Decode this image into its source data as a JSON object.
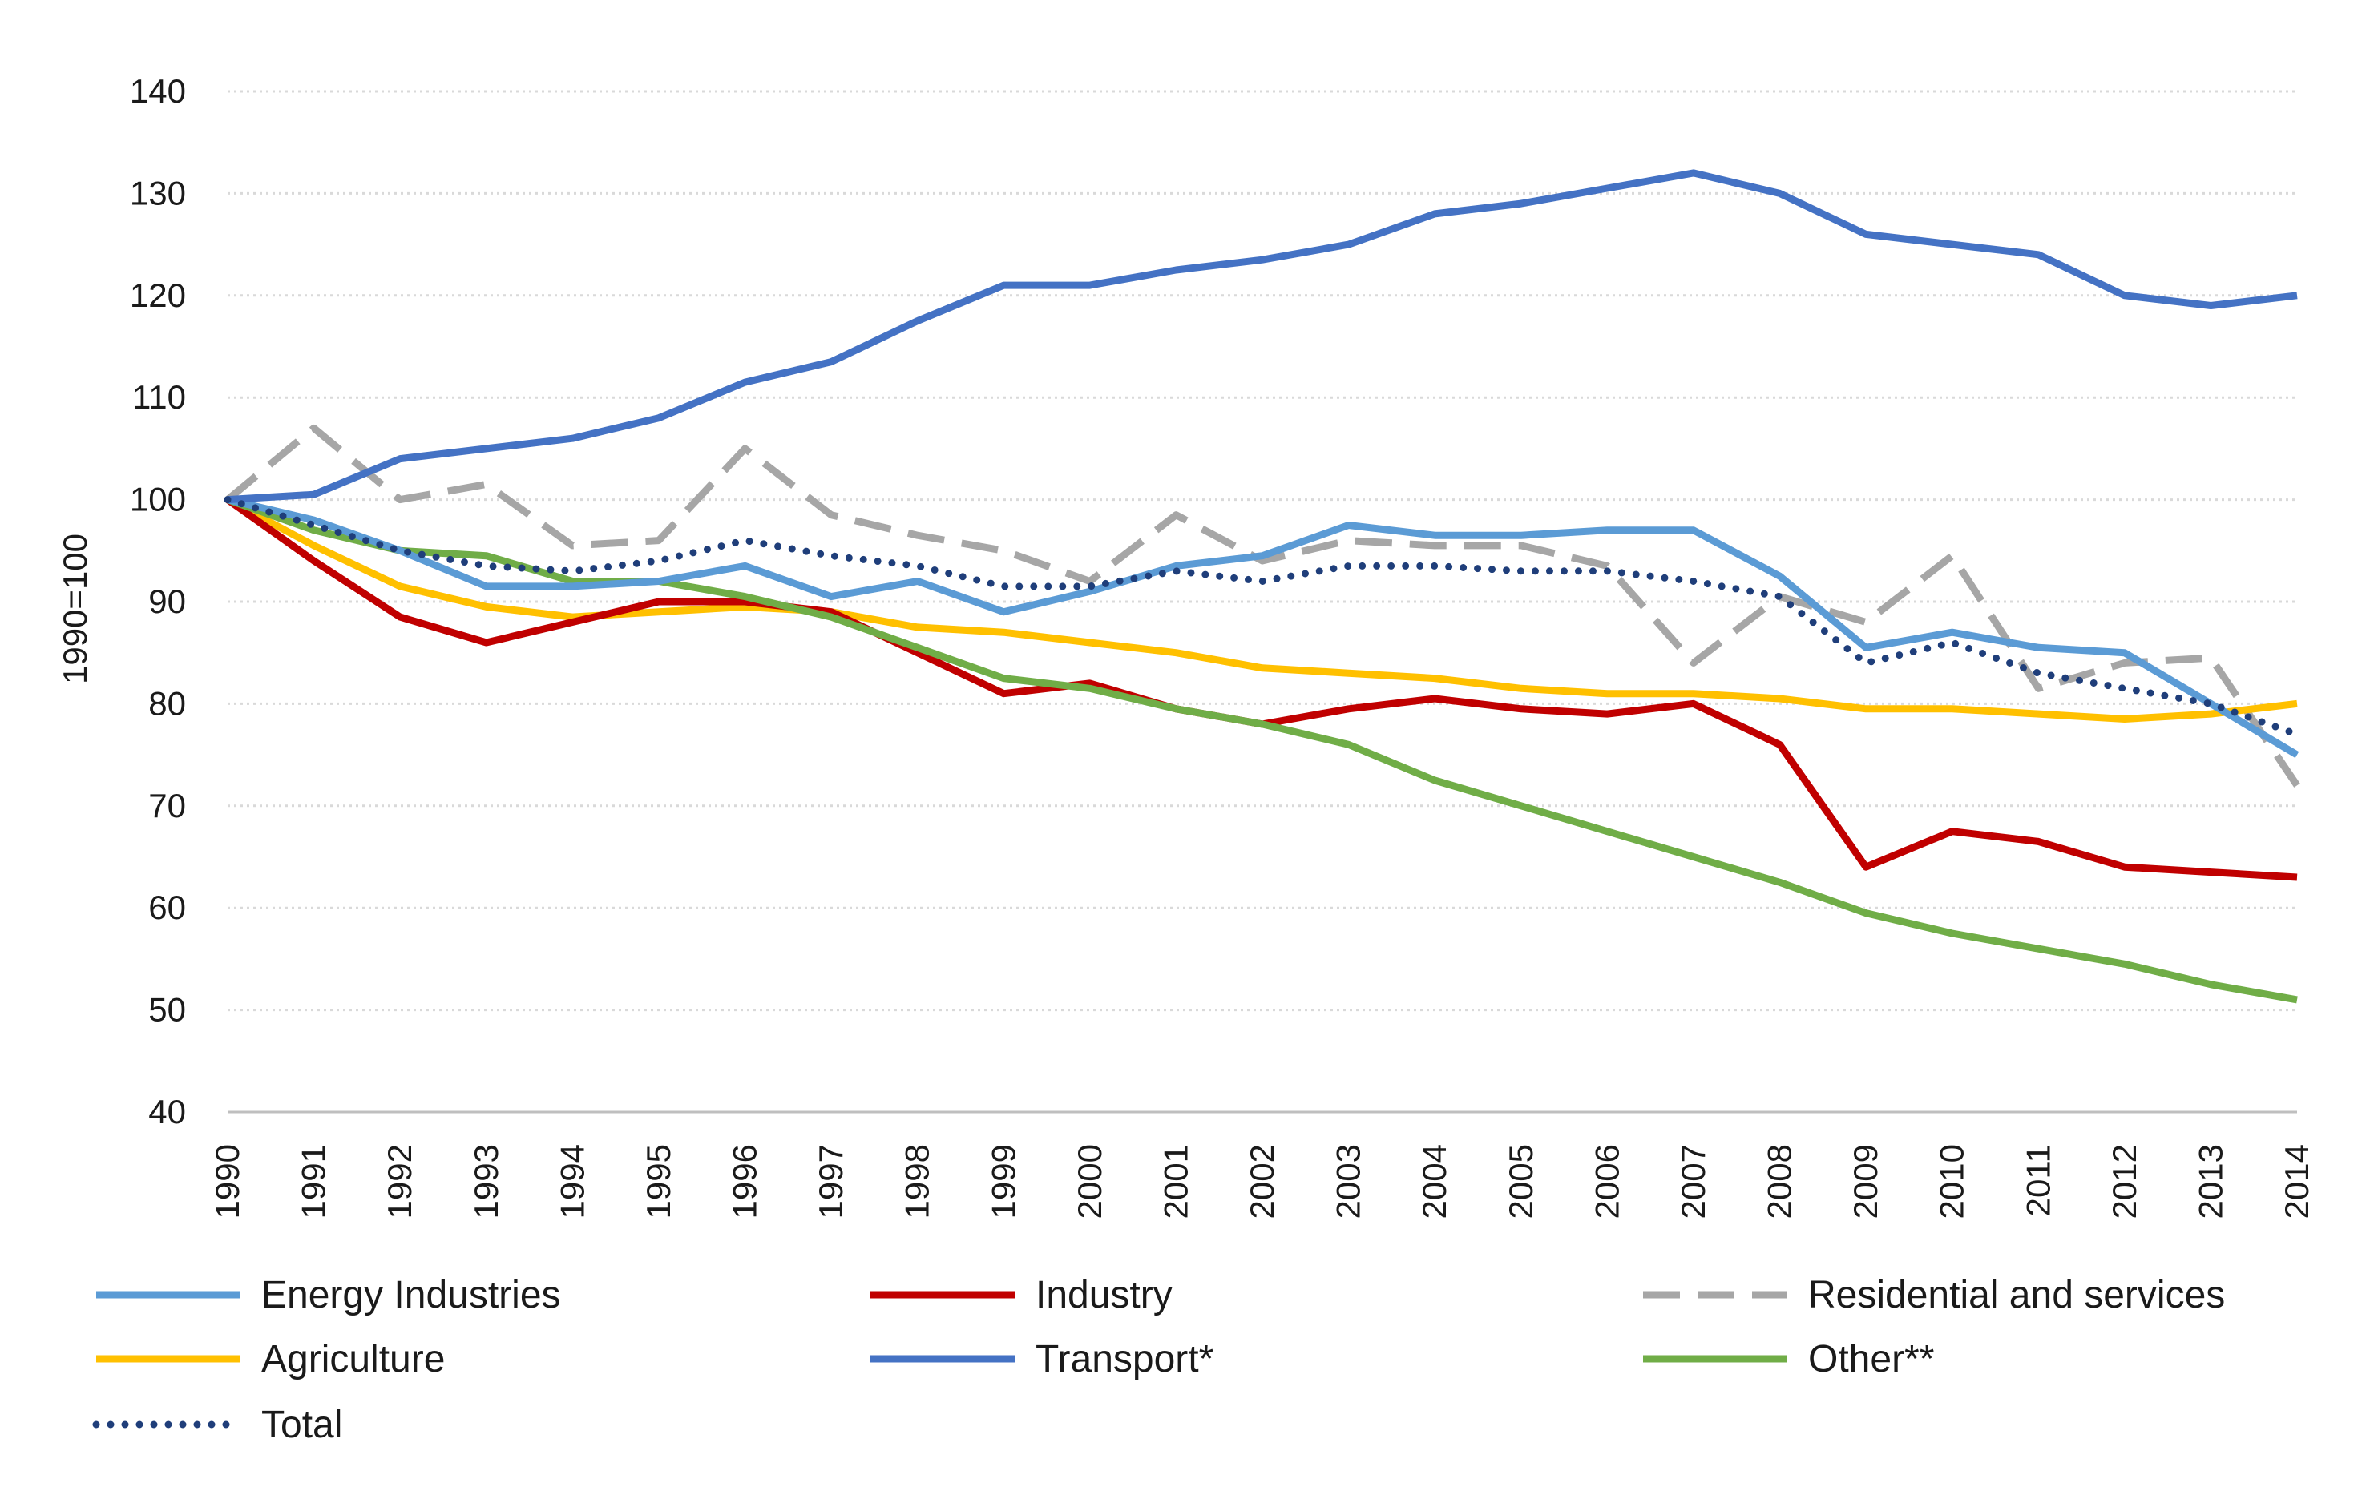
{
  "chart_data": {
    "type": "line",
    "title": "",
    "xlabel": "",
    "ylabel": "1990=100",
    "ylim": [
      40,
      140
    ],
    "yticks": [
      "40",
      "50",
      "60",
      "70",
      "80",
      "90",
      "100",
      "110",
      "120",
      "130",
      "140"
    ],
    "grid": true,
    "legend_position": "bottom",
    "categories": [
      "1990",
      "1991",
      "1992",
      "1993",
      "1994",
      "1995",
      "1996",
      "1997",
      "1998",
      "1999",
      "2000",
      "2001",
      "2002",
      "2003",
      "2004",
      "2005",
      "2006",
      "2007",
      "2008",
      "2009",
      "2010",
      "2011",
      "2012",
      "2013",
      "2014"
    ],
    "series": [
      {
        "name": "Energy Industries",
        "color": "#5b9bd5",
        "style": "solid",
        "values": [
          100,
          98,
          95,
          91.5,
          91.5,
          92,
          93.5,
          90.5,
          92,
          89,
          91,
          93.5,
          94.5,
          97.5,
          96.5,
          96.5,
          97,
          97,
          92.5,
          85.5,
          87,
          85.5,
          85,
          80,
          75
        ]
      },
      {
        "name": "Industry",
        "color": "#c00000",
        "style": "solid",
        "values": [
          100,
          94,
          88.5,
          86,
          88,
          90,
          90,
          89,
          85,
          81,
          82,
          79.5,
          78,
          79.5,
          80.5,
          79.5,
          79,
          80,
          76,
          64,
          67.5,
          66.5,
          64,
          63.5,
          63
        ]
      },
      {
        "name": "Residential and services",
        "color": "#a6a6a6",
        "style": "dashed",
        "values": [
          100,
          107,
          100,
          101.5,
          95.5,
          96,
          105,
          98.5,
          96.5,
          95,
          92,
          98.5,
          94,
          96,
          95.5,
          95.5,
          93.5,
          84,
          90.5,
          88,
          94.5,
          81.5,
          84,
          84.5,
          72
        ]
      },
      {
        "name": "Agriculture",
        "color": "#ffc000",
        "style": "solid",
        "values": [
          100,
          95.5,
          91.5,
          89.5,
          88.5,
          89,
          89.5,
          89,
          87.5,
          87,
          86,
          85,
          83.5,
          83,
          82.5,
          81.5,
          81,
          81,
          80.5,
          79.5,
          79.5,
          79,
          78.5,
          79,
          80
        ]
      },
      {
        "name": "Transport*",
        "color": "#4472c4",
        "style": "solid",
        "values": [
          100,
          100.5,
          104,
          105,
          106,
          108,
          111.5,
          113.5,
          117.5,
          121,
          121,
          122.5,
          123.5,
          125,
          128,
          129,
          130.5,
          132,
          130,
          126,
          125,
          124,
          120,
          119,
          120
        ]
      },
      {
        "name": "Other**",
        "color": "#70ad47",
        "style": "solid",
        "values": [
          100,
          97,
          95,
          94.5,
          92,
          92,
          90.5,
          88.5,
          85.5,
          82.5,
          81.5,
          79.5,
          78,
          76,
          72.5,
          70,
          67.5,
          65,
          62.5,
          59.5,
          57.5,
          56,
          54.5,
          52.5,
          51
        ]
      },
      {
        "name": "Total",
        "color": "#1f3e7a",
        "style": "dotted",
        "values": [
          100,
          97.5,
          95,
          93.5,
          93,
          94,
          96,
          94.5,
          93.5,
          91.5,
          91.5,
          93,
          92,
          93.5,
          93.5,
          93,
          93,
          92,
          90.5,
          84,
          86,
          83,
          81.5,
          80,
          77
        ]
      }
    ]
  }
}
